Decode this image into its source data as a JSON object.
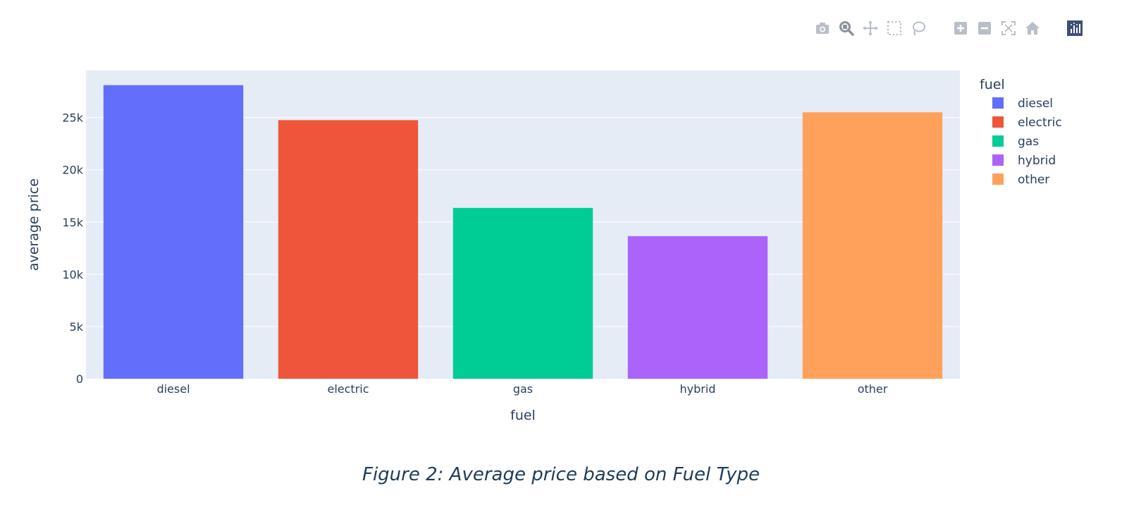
{
  "modebar": {
    "buttons": [
      {
        "name": "camera-icon",
        "label": "Download plot as a png"
      },
      {
        "name": "zoom-icon",
        "label": "Zoom"
      },
      {
        "name": "pan-icon",
        "label": "Pan"
      },
      {
        "name": "box-select-icon",
        "label": "Box Select"
      },
      {
        "name": "lasso-select-icon",
        "label": "Lasso Select"
      },
      {
        "name": "zoom-in-icon",
        "label": "Zoom in"
      },
      {
        "name": "zoom-out-icon",
        "label": "Zoom out"
      },
      {
        "name": "autoscale-icon",
        "label": "Autoscale"
      },
      {
        "name": "reset-axes-icon",
        "label": "Reset axes"
      },
      {
        "name": "plotly-logo-icon",
        "label": "Produced with Plotly"
      }
    ],
    "icon_color": "#b8bfc8",
    "active_color": "#8a939d",
    "logo_color": "#3f4f75"
  },
  "chart_data": {
    "type": "bar",
    "categories": [
      "diesel",
      "electric",
      "gas",
      "hybrid",
      "other"
    ],
    "values": [
      28100,
      24750,
      16350,
      13650,
      25500
    ],
    "colors": [
      "#636efa",
      "#ef553b",
      "#00cc96",
      "#ab63fa",
      "#ffa15a"
    ],
    "xlabel": "fuel",
    "ylabel": "average price",
    "ylim": [
      0,
      29500
    ],
    "yticks": [
      0,
      5000,
      10000,
      15000,
      20000,
      25000
    ],
    "ytick_labels": [
      "0",
      "5k",
      "10k",
      "15k",
      "20k",
      "25k"
    ],
    "grid": true,
    "legend": {
      "title": "fuel",
      "placement": "right",
      "entries": [
        "diesel",
        "electric",
        "gas",
        "hybrid",
        "other"
      ]
    },
    "plot_bgcolor": "#e5ecf6"
  },
  "caption": "Figure 2: Average price based on Fuel Type"
}
